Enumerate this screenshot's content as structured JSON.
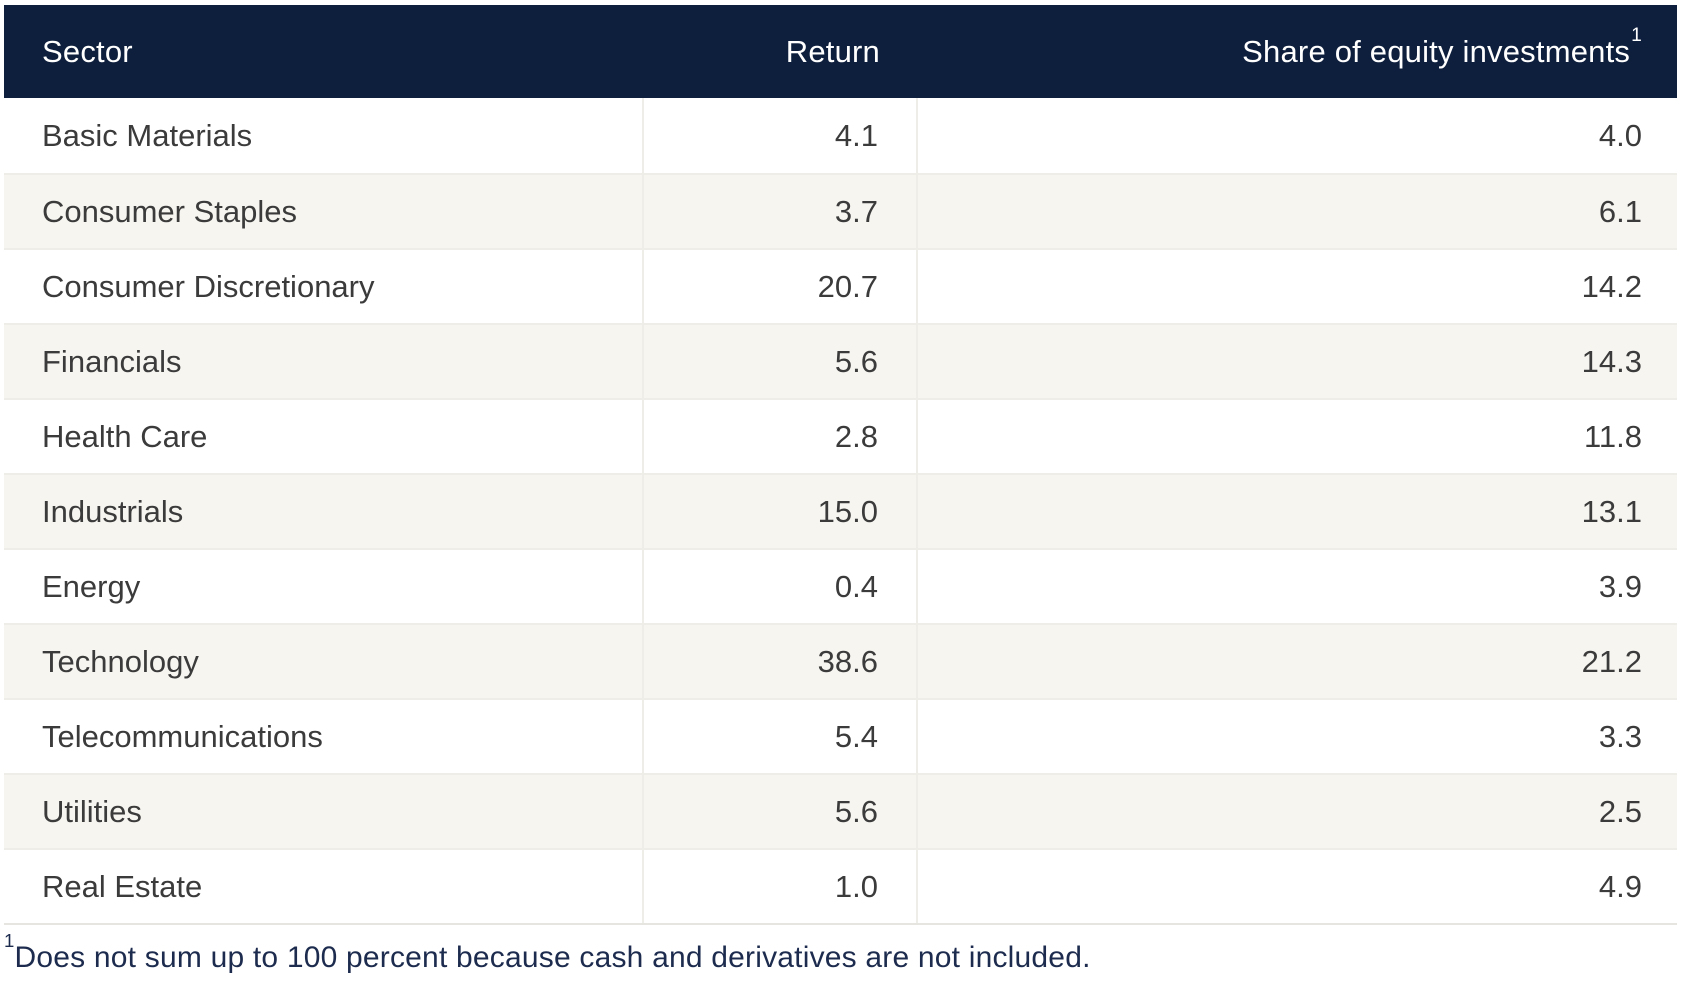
{
  "table": {
    "header": {
      "sector": "Sector",
      "return": "Return",
      "share": "Share of equity investments",
      "share_superscript": "1"
    },
    "rows": [
      {
        "sector": "Basic Materials",
        "return": "4.1",
        "share": "4.0"
      },
      {
        "sector": "Consumer Staples",
        "return": "3.7",
        "share": "6.1"
      },
      {
        "sector": "Consumer Discretionary",
        "return": "20.7",
        "share": "14.2"
      },
      {
        "sector": "Financials",
        "return": "5.6",
        "share": "14.3"
      },
      {
        "sector": "Health Care",
        "return": "2.8",
        "share": "11.8"
      },
      {
        "sector": "Industrials",
        "return": "15.0",
        "share": "13.1"
      },
      {
        "sector": "Energy",
        "return": "0.4",
        "share": "3.9"
      },
      {
        "sector": "Technology",
        "return": "38.6",
        "share": "21.2"
      },
      {
        "sector": "Telecommunications",
        "return": "5.4",
        "share": "3.3"
      },
      {
        "sector": "Utilities",
        "return": "5.6",
        "share": "2.5"
      },
      {
        "sector": "Real Estate",
        "return": "1.0",
        "share": "4.9"
      }
    ],
    "footnote": {
      "superscript": "1",
      "text": "Does not sum up to 100 percent because cash and derivatives are not included."
    }
  },
  "chart_data": {
    "type": "table",
    "columns": [
      "Sector",
      "Return",
      "Share of equity investments¹"
    ],
    "rows": [
      [
        "Basic Materials",
        4.1,
        4.0
      ],
      [
        "Consumer Staples",
        3.7,
        6.1
      ],
      [
        "Consumer Discretionary",
        20.7,
        14.2
      ],
      [
        "Financials",
        5.6,
        14.3
      ],
      [
        "Health Care",
        2.8,
        11.8
      ],
      [
        "Industrials",
        15.0,
        13.1
      ],
      [
        "Energy",
        0.4,
        3.9
      ],
      [
        "Technology",
        38.6,
        21.2
      ],
      [
        "Telecommunications",
        5.4,
        3.3
      ],
      [
        "Utilities",
        5.6,
        2.5
      ],
      [
        "Real Estate",
        1.0,
        4.9
      ]
    ],
    "footnote": "¹Does not sum up to 100 percent because cash and derivatives are not included."
  },
  "colors": {
    "header_bg": "#0e1f3d",
    "header_text": "#ffffff",
    "row_bg": "#ffffff",
    "row_alt_bg": "#f7f5f0",
    "grid_line": "#efede8",
    "table_bottom_line": "#e7e5e0",
    "body_text": "#3b3b3b",
    "footnote_text": "#1d2c4e"
  }
}
